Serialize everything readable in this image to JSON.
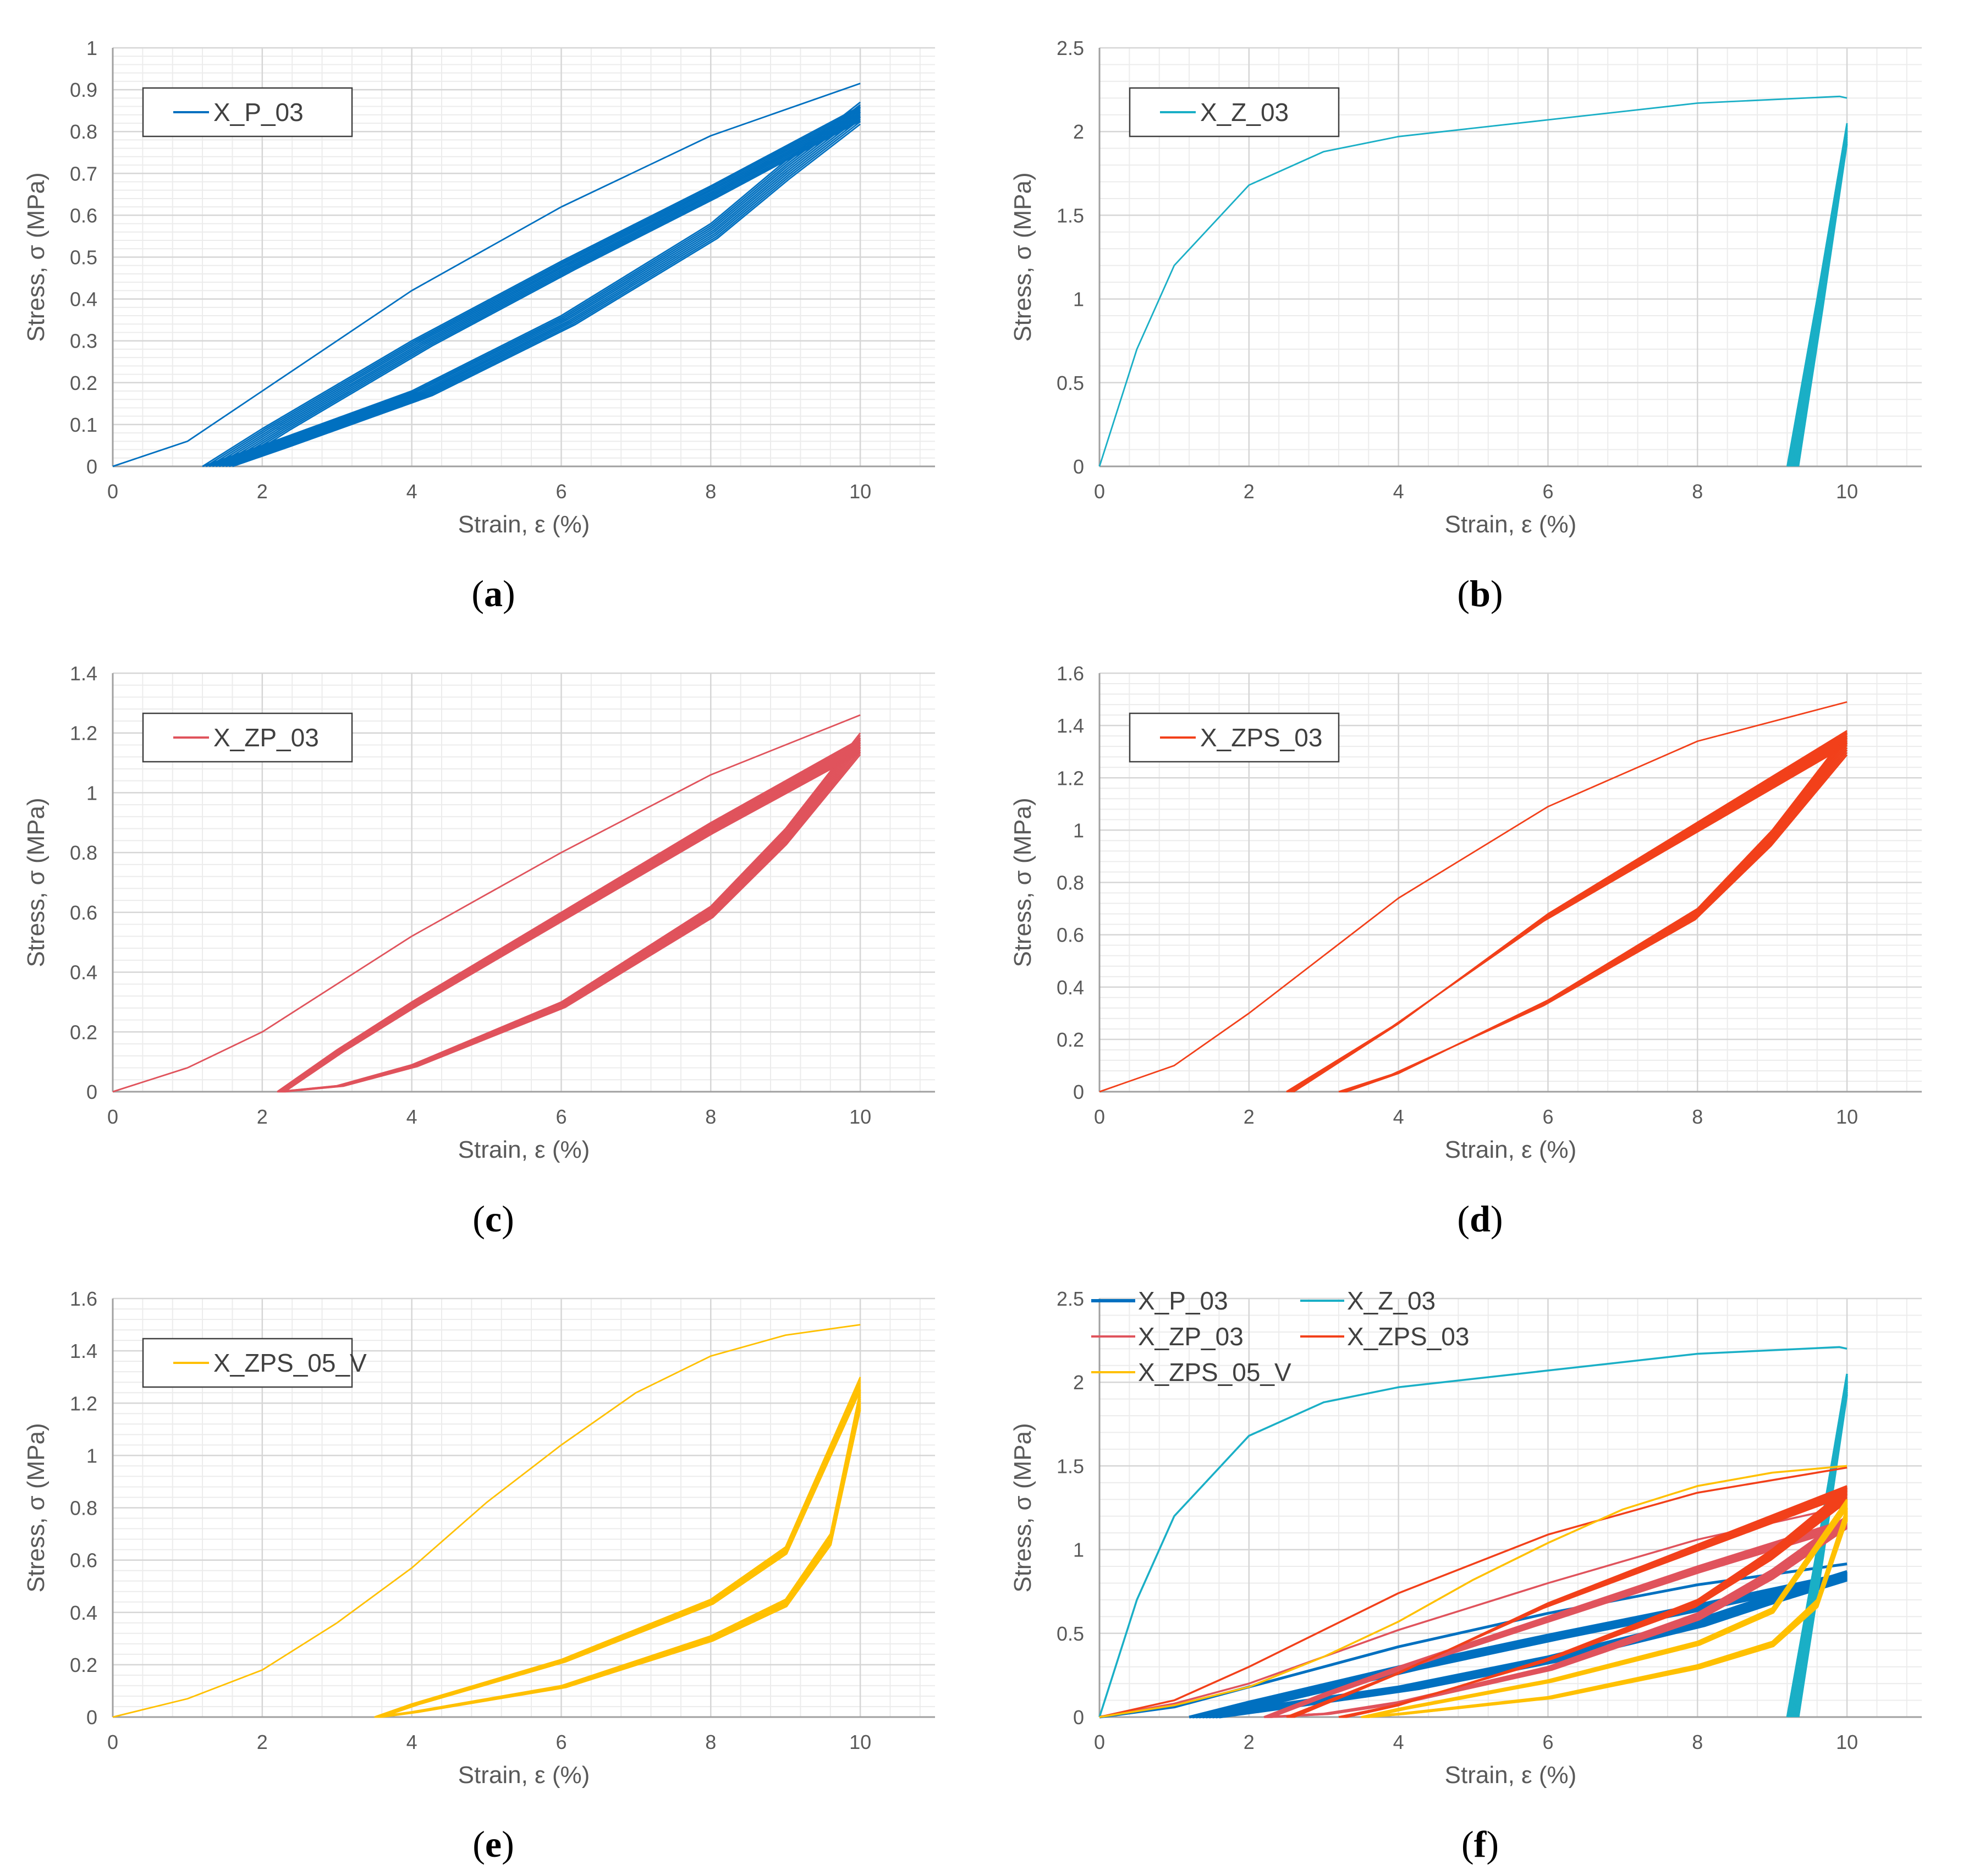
{
  "xlabel": "Strain, ε (%)",
  "ylabel": "Stress, σ (MPa)",
  "chart_data": [
    {
      "id": "a",
      "type": "line",
      "caption": "a",
      "xlim": [
        0,
        11
      ],
      "ylim": [
        0,
        1
      ],
      "xticks": [
        "0",
        "2",
        "4",
        "6",
        "8",
        "10"
      ],
      "yticks": [
        "0",
        "0.1",
        "0.2",
        "0.3",
        "0.4",
        "0.5",
        "0.6",
        "0.7",
        "0.8",
        "0.9",
        "1"
      ],
      "legend_position": "top-left",
      "series": [
        {
          "name": "X_P_03",
          "color": "#0070C0",
          "cycles": 10,
          "first_loading": [
            [
              0,
              0
            ],
            [
              1,
              0.06
            ],
            [
              2,
              0.18
            ],
            [
              4,
              0.42
            ],
            [
              6,
              0.62
            ],
            [
              8,
              0.79
            ],
            [
              10,
              0.915
            ]
          ],
          "unloading": [
            [
              10,
              0.87
            ],
            [
              9,
              0.73
            ],
            [
              8,
              0.58
            ],
            [
              6,
              0.36
            ],
            [
              4,
              0.18
            ],
            [
              2,
              0.05
            ],
            [
              1.2,
              0
            ]
          ],
          "reloading": [
            [
              1.2,
              0
            ],
            [
              2,
              0.09
            ],
            [
              4,
              0.3
            ],
            [
              6,
              0.49
            ],
            [
              8,
              0.67
            ],
            [
              10,
              0.86
            ]
          ],
          "final_residual_strain": 1.6,
          "min_peak_stress": 0.83
        }
      ]
    },
    {
      "id": "b",
      "type": "line",
      "caption": "b",
      "xlim": [
        0,
        11
      ],
      "ylim": [
        0,
        2.5
      ],
      "xticks": [
        "0",
        "2",
        "4",
        "6",
        "8",
        "10"
      ],
      "yticks": [
        "0",
        "0.5",
        "1",
        "1.5",
        "2",
        "2.5"
      ],
      "legend_position": "top-left",
      "series": [
        {
          "name": "X_Z_03",
          "color": "#1AAFC6",
          "cycles": 10,
          "first_loading": [
            [
              0,
              0
            ],
            [
              0.5,
              0.7
            ],
            [
              1,
              1.2
            ],
            [
              2,
              1.68
            ],
            [
              3,
              1.88
            ],
            [
              4,
              1.97
            ],
            [
              6,
              2.07
            ],
            [
              8,
              2.17
            ],
            [
              9.9,
              2.21
            ],
            [
              10,
              2.2
            ]
          ],
          "unloading": [
            [
              10,
              2.05
            ],
            [
              9.6,
              1.0
            ],
            [
              9.2,
              0
            ]
          ],
          "reloading": [
            [
              9.2,
              0
            ],
            [
              9.6,
              1.0
            ],
            [
              10,
              2.05
            ]
          ],
          "final_residual_strain": 9.35,
          "min_peak_stress": 2.0
        }
      ]
    },
    {
      "id": "c",
      "type": "line",
      "caption": "c",
      "xlim": [
        0,
        11
      ],
      "ylim": [
        0,
        1.4
      ],
      "xticks": [
        "0",
        "2",
        "4",
        "6",
        "8",
        "10"
      ],
      "yticks": [
        "0",
        "0.2",
        "0.4",
        "0.6",
        "0.8",
        "1",
        "1.2",
        "1.4"
      ],
      "legend_position": "top-left",
      "series": [
        {
          "name": "X_ZP_03",
          "color": "#E0535C",
          "cycles": 10,
          "first_loading": [
            [
              0,
              0
            ],
            [
              1,
              0.08
            ],
            [
              2,
              0.2
            ],
            [
              4,
              0.52
            ],
            [
              6,
              0.8
            ],
            [
              8,
              1.06
            ],
            [
              10,
              1.26
            ]
          ],
          "unloading": [
            [
              10,
              1.2
            ],
            [
              9,
              0.88
            ],
            [
              8,
              0.62
            ],
            [
              6,
              0.3
            ],
            [
              4,
              0.09
            ],
            [
              3,
              0.02
            ],
            [
              2.2,
              0
            ]
          ],
          "reloading": [
            [
              2.2,
              0
            ],
            [
              3,
              0.14
            ],
            [
              4,
              0.3
            ],
            [
              6,
              0.6
            ],
            [
              8,
              0.9
            ],
            [
              10,
              1.18
            ]
          ],
          "final_residual_strain": 2.3,
          "min_peak_stress": 1.1
        }
      ]
    },
    {
      "id": "d",
      "type": "line",
      "caption": "d",
      "xlim": [
        0,
        11
      ],
      "ylim": [
        0,
        1.6
      ],
      "xticks": [
        "0",
        "2",
        "4",
        "6",
        "8",
        "10"
      ],
      "yticks": [
        "0",
        "0.2",
        "0.4",
        "0.6",
        "0.8",
        "1",
        "1.2",
        "1.4",
        "1.6"
      ],
      "legend_position": "top-left",
      "series": [
        {
          "name": "X_ZPS_03",
          "color": "#F2401A",
          "cycles": 10,
          "first_loading": [
            [
              0,
              0
            ],
            [
              1,
              0.1
            ],
            [
              2,
              0.3
            ],
            [
              4,
              0.74
            ],
            [
              6,
              1.09
            ],
            [
              8,
              1.34
            ],
            [
              10,
              1.49
            ]
          ],
          "unloading": [
            [
              10,
              1.37
            ],
            [
              9,
              1.0
            ],
            [
              8,
              0.7
            ],
            [
              6,
              0.35
            ],
            [
              4,
              0.07
            ],
            [
              3.3,
              0
            ]
          ],
          "reloading": [
            [
              2.6,
              0
            ],
            [
              4,
              0.26
            ],
            [
              6,
              0.68
            ],
            [
              8,
              1.03
            ],
            [
              10,
              1.38
            ]
          ],
          "final_residual_strain": 3.2,
          "min_peak_stress": 1.27
        }
      ]
    },
    {
      "id": "e",
      "type": "line",
      "caption": "e",
      "xlim": [
        0,
        11
      ],
      "ylim": [
        0,
        1.6
      ],
      "xticks": [
        "0",
        "2",
        "4",
        "6",
        "8",
        "10"
      ],
      "yticks": [
        "0",
        "0.2",
        "0.4",
        "0.6",
        "0.8",
        "1",
        "1.2",
        "1.4",
        "1.6"
      ],
      "legend_position": "top-left",
      "series": [
        {
          "name": "X_ZPS_05_V",
          "color": "#FFC000",
          "cycles": 10,
          "first_loading": [
            [
              0,
              0
            ],
            [
              1,
              0.07
            ],
            [
              2,
              0.18
            ],
            [
              3,
              0.36
            ],
            [
              4,
              0.57
            ],
            [
              5,
              0.82
            ],
            [
              6,
              1.04
            ],
            [
              7,
              1.24
            ],
            [
              8,
              1.38
            ],
            [
              9,
              1.46
            ],
            [
              10,
              1.5
            ]
          ],
          "unloading": [
            [
              10,
              1.25
            ],
            [
              9.6,
              0.7
            ],
            [
              9,
              0.45
            ],
            [
              8,
              0.31
            ],
            [
              6,
              0.12
            ],
            [
              4,
              0.02
            ],
            [
              3.5,
              0
            ]
          ],
          "reloading": [
            [
              3.5,
              0
            ],
            [
              4,
              0.05
            ],
            [
              6,
              0.22
            ],
            [
              8,
              0.45
            ],
            [
              9,
              0.65
            ],
            [
              10,
              1.3
            ]
          ],
          "final_residual_strain": 3.6,
          "min_peak_stress": 1.2
        }
      ]
    },
    {
      "id": "f",
      "type": "line",
      "caption": "f",
      "xlim": [
        0,
        11
      ],
      "ylim": [
        0,
        2.5
      ],
      "xticks": [
        "0",
        "2",
        "4",
        "6",
        "8",
        "10"
      ],
      "yticks": [
        "0",
        "0.5",
        "1",
        "1.5",
        "2",
        "2.5"
      ],
      "legend_position": "top-left",
      "combined": [
        "a",
        "b",
        "c",
        "d",
        "e"
      ],
      "legend": [
        "X_P_03",
        "X_Z_03",
        "X_ZP_03",
        "X_ZPS_03",
        "X_ZPS_05_V"
      ]
    }
  ]
}
